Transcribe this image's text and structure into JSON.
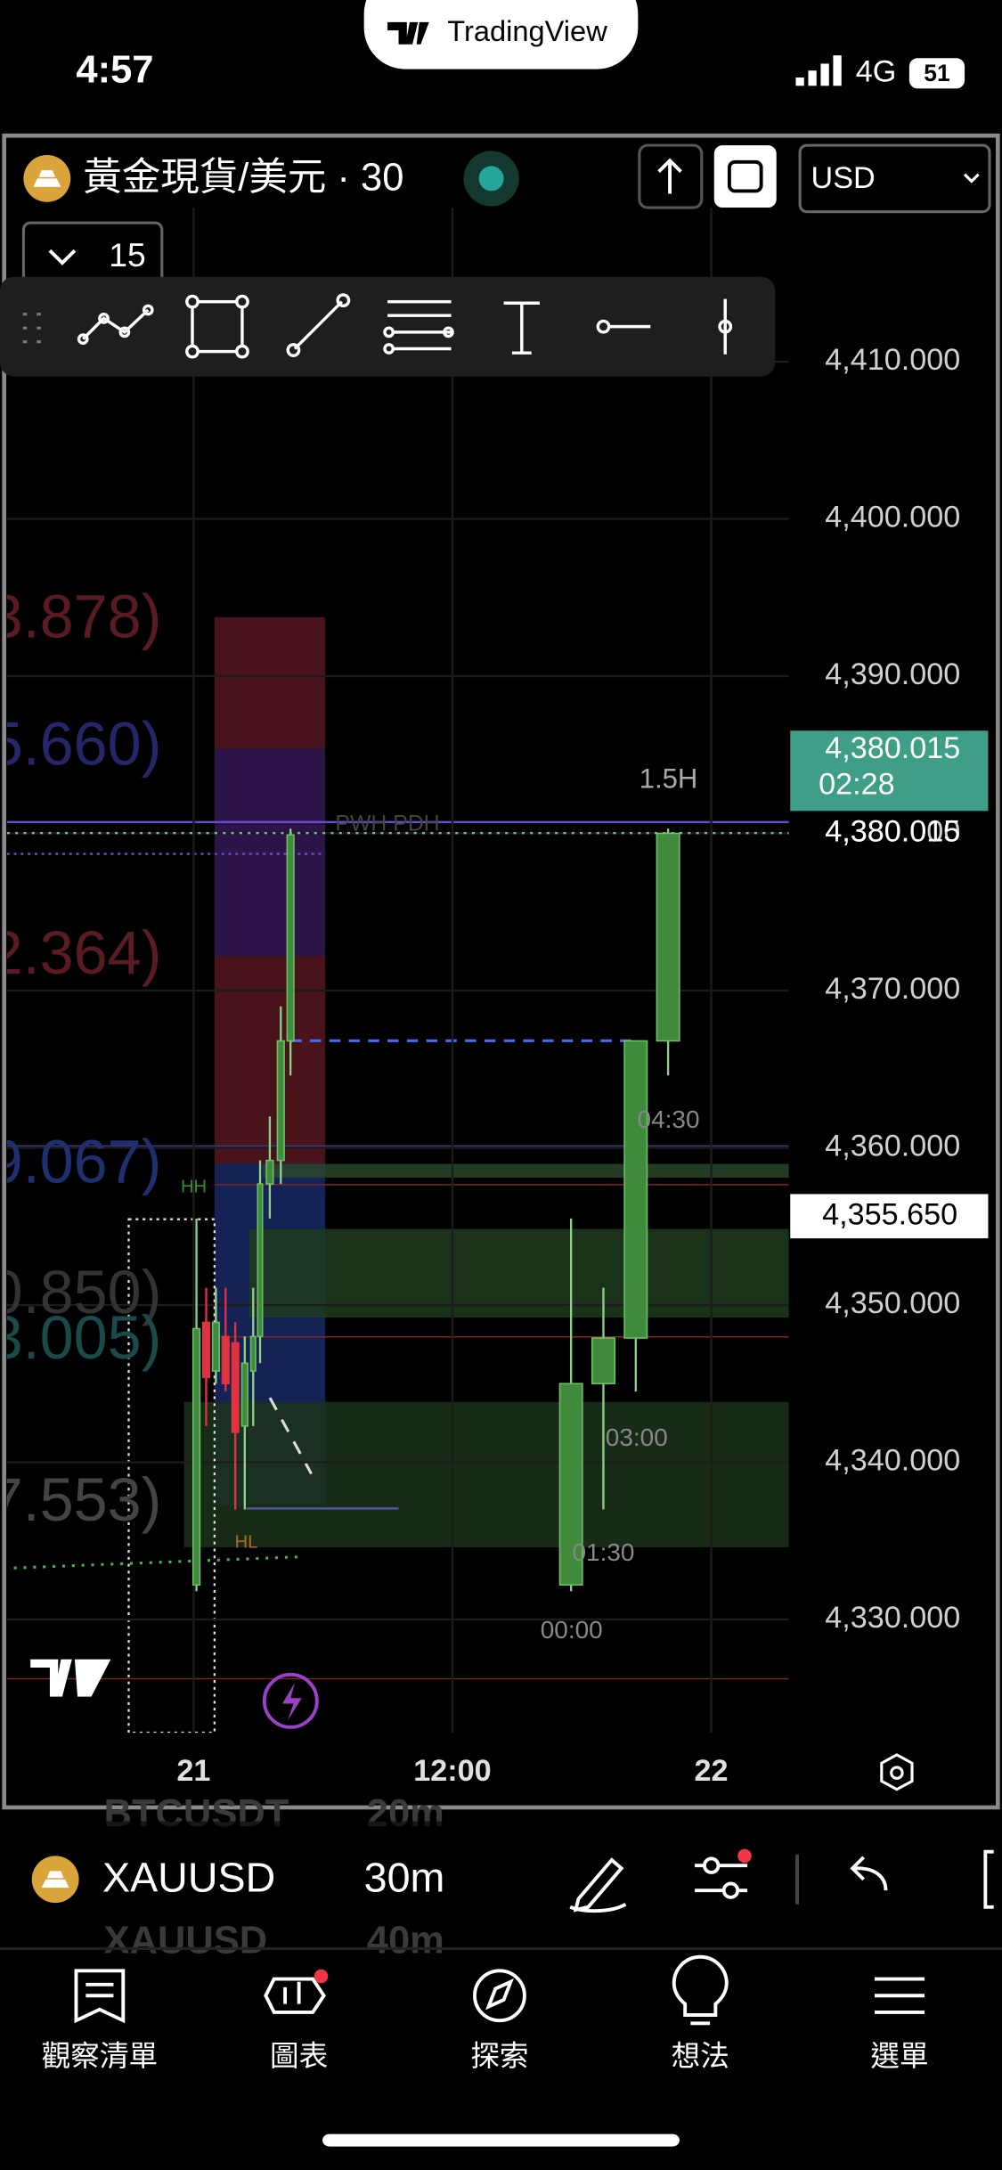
{
  "status_bar": {
    "time": "4:57",
    "network": "4G",
    "battery": "51"
  },
  "pill": {
    "brand": "TradingView"
  },
  "header": {
    "symbol_title": "黃金現貨/美元 · 30",
    "currency": "USD",
    "interval_count": "15"
  },
  "chart_data": {
    "type": "candlestick",
    "xlim": [
      -8.66,
      27.6
    ],
    "xticks": [
      {
        "value": 0,
        "label": "21"
      },
      {
        "value": 12,
        "label": "12:00"
      },
      {
        "value": 24,
        "label": "22"
      }
    ],
    "ylim": [
      4322.8,
      4424.2
    ],
    "yticks": [
      {
        "value": 4330,
        "label": "4,330.000"
      },
      {
        "value": 4340,
        "label": "4,340.000"
      },
      {
        "value": 4350,
        "label": "4,350.000"
      },
      {
        "value": 4360,
        "label": "4,360.000"
      },
      {
        "value": 4370,
        "label": "4,370.000"
      },
      {
        "value": 4380,
        "label": "4,380.000"
      },
      {
        "value": 4390,
        "label": "4,390.000"
      },
      {
        "value": 4400,
        "label": "4,400.000"
      },
      {
        "value": 4410,
        "label": "4,410.000"
      }
    ],
    "grid": true,
    "up_color": "#3f8a3b",
    "down_color": "#e0323f",
    "candles": {
      "x": [
        0.13,
        0.58,
        1.03,
        1.48,
        1.93,
        2.37,
        2.76,
        3.08,
        3.53,
        4.04,
        4.49,
        17.5,
        19.0,
        20.5,
        22.0
      ],
      "open": [
        4332.2,
        4348.9,
        4345.8,
        4348.0,
        4347.6,
        4342.3,
        4345.8,
        4348.0,
        4357.7,
        4359.2,
        4366.8,
        4332.2,
        4345.0,
        4347.9,
        4366.8
      ],
      "high": [
        4355.5,
        4351.1,
        4351.1,
        4351.1,
        4348.9,
        4348.0,
        4351.1,
        4359.2,
        4362.0,
        4369.0,
        4380.3,
        4355.5,
        4351.1,
        4366.8,
        4380.3
      ],
      "low": [
        4331.8,
        4342.3,
        4345.0,
        4344.5,
        4337.0,
        4337.0,
        4342.3,
        4346.3,
        4355.5,
        4357.7,
        4364.6,
        4331.8,
        4337.0,
        4344.5,
        4364.6
      ],
      "close": [
        4348.5,
        4345.4,
        4348.9,
        4345.0,
        4341.9,
        4346.3,
        4348.0,
        4357.7,
        4359.2,
        4366.8,
        4379.9,
        4345.0,
        4347.9,
        4366.8,
        4380.0
      ]
    },
    "last_price": {
      "value": 4380.015,
      "label": "4,380.015"
    },
    "countdown": "02:28",
    "crosshair_price": {
      "value": 4355.65,
      "label": "4,355.650"
    },
    "annotations": [
      "1.5H",
      "04:30",
      "03:00",
      "01:30",
      "00:00",
      "HH",
      "HL",
      "PWH PDH"
    ],
    "overlay_labels": [
      "3.878)",
      "5.660)",
      "2.364)",
      "9.067)",
      "0.850)",
      "3.005)",
      "7.553)"
    ]
  },
  "symbol_bar": {
    "symbol": "XAUUSD",
    "interval": "30m",
    "ghost_above": [
      "BTCUSDT",
      "20m"
    ],
    "ghost_below": [
      "XAUUSD",
      "40m"
    ]
  },
  "tab_bar": {
    "items": [
      "觀察清單",
      "圖表",
      "探索",
      "想法",
      "選單"
    ]
  }
}
